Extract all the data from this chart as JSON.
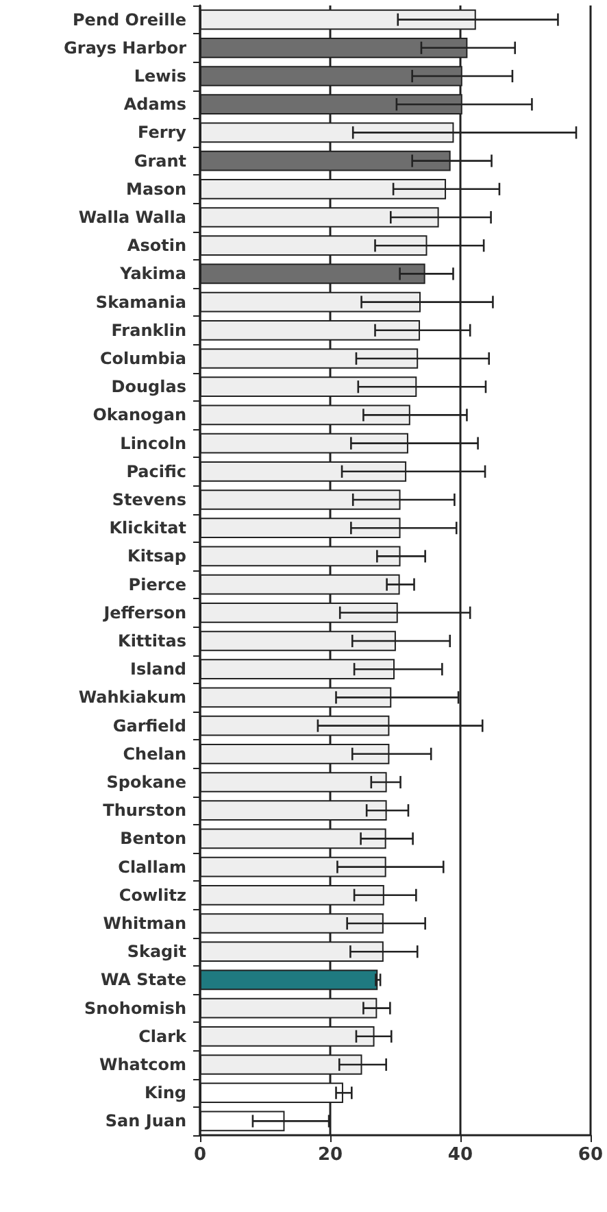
{
  "chart_data": {
    "type": "bar",
    "orientation": "horizontal",
    "categories": [
      "Pend Oreille",
      "Grays Harbor",
      "Lewis",
      "Adams",
      "Ferry",
      "Grant",
      "Mason",
      "Walla Walla",
      "Asotin",
      "Yakima",
      "Skamania",
      "Franklin",
      "Columbia",
      "Douglas",
      "Okanogan",
      "Lincoln",
      "Pacific",
      "Stevens",
      "Klickitat",
      "Kitsap",
      "Pierce",
      "Jefferson",
      "Kittitas",
      "Island",
      "Wahkiakum",
      "Garfield",
      "Chelan",
      "Spokane",
      "Thurston",
      "Benton",
      "Clallam",
      "Cowlitz",
      "Whitman",
      "Skagit",
      "WA State",
      "Snohomish",
      "Clark",
      "Whatcom",
      "King",
      "San Juan"
    ],
    "values": [
      42.4,
      41.1,
      40.3,
      40.3,
      39,
      38.5,
      37.8,
      36.7,
      34.9,
      34.6,
      33.9,
      33.8,
      33.5,
      33.3,
      32.3,
      32,
      31.7,
      30.8,
      30.8,
      30.8,
      30.7,
      30.4,
      30.1,
      29.9,
      29.4,
      29.1,
      29.1,
      28.7,
      28.7,
      28.6,
      28.6,
      28.3,
      28.2,
      28.2,
      27.3,
      27.2,
      26.8,
      24.9,
      22,
      13
    ],
    "errors": [
      [
        30.4,
        55
      ],
      [
        34,
        48.4
      ],
      [
        32.6,
        48
      ],
      [
        30.2,
        51
      ],
      [
        23.5,
        57.8
      ],
      [
        32.6,
        44.8
      ],
      [
        29.7,
        46
      ],
      [
        29.3,
        44.7
      ],
      [
        26.9,
        43.6
      ],
      [
        30.7,
        38.9
      ],
      [
        24.8,
        45
      ],
      [
        26.9,
        41.5
      ],
      [
        24,
        44.4
      ],
      [
        24.3,
        43.9
      ],
      [
        25.1,
        41
      ],
      [
        23.2,
        42.7
      ],
      [
        21.8,
        43.8
      ],
      [
        23.5,
        39.1
      ],
      [
        23.2,
        39.4
      ],
      [
        27.2,
        34.6
      ],
      [
        28.7,
        32.9
      ],
      [
        21.5,
        41.5
      ],
      [
        23.4,
        38.4
      ],
      [
        23.7,
        37.2
      ],
      [
        20.9,
        39.7
      ],
      [
        18.1,
        43.4
      ],
      [
        23.4,
        35.5
      ],
      [
        26.3,
        30.8
      ],
      [
        25.6,
        32
      ],
      [
        24.7,
        32.7
      ],
      [
        21.1,
        37.4
      ],
      [
        23.7,
        33.2
      ],
      [
        22.6,
        34.6
      ],
      [
        23.1,
        33.4
      ],
      [
        27,
        27.7
      ],
      [
        25.1,
        29.2
      ],
      [
        24,
        29.4
      ],
      [
        21.4,
        28.6
      ],
      [
        20.9,
        23.3
      ],
      [
        8.1,
        19.8
      ]
    ],
    "colors": [
      "#eeeeee",
      "#6e6e6e",
      "#6e6e6e",
      "#6e6e6e",
      "#eeeeee",
      "#6e6e6e",
      "#eeeeee",
      "#eeeeee",
      "#eeeeee",
      "#6e6e6e",
      "#eeeeee",
      "#eeeeee",
      "#eeeeee",
      "#eeeeee",
      "#eeeeee",
      "#eeeeee",
      "#eeeeee",
      "#eeeeee",
      "#eeeeee",
      "#eeeeee",
      "#eeeeee",
      "#eeeeee",
      "#eeeeee",
      "#eeeeee",
      "#eeeeee",
      "#eeeeee",
      "#eeeeee",
      "#eeeeee",
      "#eeeeee",
      "#eeeeee",
      "#eeeeee",
      "#eeeeee",
      "#eeeeee",
      "#eeeeee",
      "#1f7a80",
      "#eeeeee",
      "#eeeeee",
      "#eeeeee",
      "#ffffff",
      "#ffffff"
    ],
    "xlim": [
      0,
      60
    ],
    "xticks": [
      0,
      20,
      40,
      60
    ],
    "grid": "x"
  }
}
